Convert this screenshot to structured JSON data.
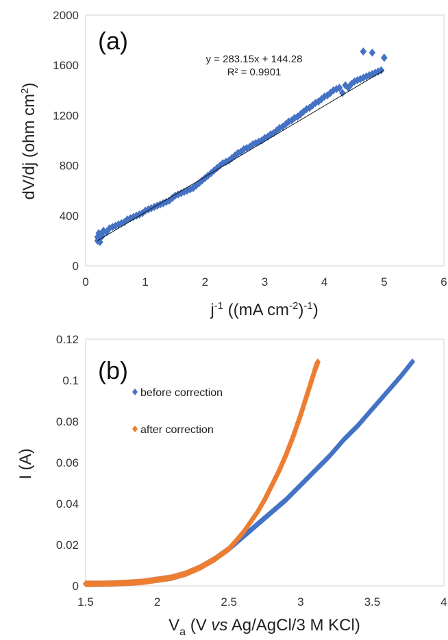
{
  "chart_data": [
    {
      "type": "scatter",
      "panel_label": "(a)",
      "xlabel": {
        "main": "j",
        "sup1": "-1",
        "mid": " ((mA cm",
        "sup2": "-2",
        "end": ")",
        "sup3": "-1",
        "tail": ")"
      },
      "ylabel": {
        "main": "dV/dj (ohm cm",
        "sup": "2",
        "end": ")"
      },
      "xlim": [
        0,
        6
      ],
      "ylim": [
        0,
        2000
      ],
      "xticks": [
        "0",
        "1",
        "2",
        "3",
        "4",
        "5",
        "6"
      ],
      "yticks": [
        "0",
        "400",
        "800",
        "1200",
        "1600",
        "2000"
      ],
      "grid": false,
      "equation": "y = 283.15x + 144.28",
      "r_squared": "R² = 0.9901",
      "trendline": {
        "slope": 283.15,
        "intercept": 144.28,
        "x_range": [
          0.2,
          5.0
        ]
      },
      "series": [
        {
          "color": "#4472C4",
          "marker": "diamond",
          "x": [
            0.2,
            0.22,
            0.25,
            0.28,
            0.3,
            0.35,
            0.4,
            0.45,
            0.5,
            0.55,
            0.6,
            0.65,
            0.7,
            0.75,
            0.8,
            0.85,
            0.9,
            0.95,
            1.0,
            1.05,
            1.1,
            1.15,
            1.2,
            1.25,
            1.3,
            1.35,
            1.4,
            1.45,
            1.5,
            1.55,
            1.6,
            1.65,
            1.7,
            1.75,
            1.8,
            1.85,
            1.9,
            1.95,
            2.0,
            2.05,
            2.1,
            2.15,
            2.2,
            2.25,
            2.3,
            2.35,
            2.4,
            2.45,
            2.5,
            2.55,
            2.6,
            2.65,
            2.7,
            2.75,
            2.8,
            2.85,
            2.9,
            2.95,
            3.0,
            3.05,
            3.1,
            3.15,
            3.2,
            3.25,
            3.3,
            3.35,
            3.4,
            3.45,
            3.5,
            3.55,
            3.6,
            3.65,
            3.7,
            3.75,
            3.8,
            3.85,
            3.9,
            3.95,
            4.0,
            4.05,
            4.1,
            4.15,
            4.2,
            4.25,
            4.3,
            4.35,
            4.4,
            4.45,
            4.5,
            4.55,
            4.6,
            4.65,
            4.7,
            4.75,
            4.8,
            4.85,
            4.9,
            4.95,
            5.0,
            4.65,
            4.8,
            5.0,
            0.2,
            0.22,
            0.24
          ],
          "y": [
            230,
            260,
            250,
            240,
            280,
            270,
            300,
            310,
            320,
            330,
            340,
            350,
            370,
            380,
            390,
            400,
            410,
            420,
            440,
            450,
            460,
            470,
            480,
            490,
            500,
            510,
            520,
            540,
            560,
            570,
            580,
            590,
            600,
            610,
            620,
            640,
            660,
            680,
            700,
            720,
            740,
            760,
            780,
            800,
            820,
            830,
            840,
            860,
            880,
            900,
            910,
            930,
            940,
            950,
            970,
            980,
            990,
            1000,
            1020,
            1030,
            1050,
            1060,
            1080,
            1100,
            1110,
            1130,
            1150,
            1160,
            1180,
            1190,
            1210,
            1230,
            1250,
            1260,
            1280,
            1300,
            1310,
            1330,
            1350,
            1360,
            1380,
            1400,
            1410,
            1420,
            1380,
            1440,
            1420,
            1450,
            1470,
            1480,
            1490,
            1500,
            1510,
            1520,
            1530,
            1540,
            1550,
            1560,
            1660,
            1710,
            1700,
            1660,
            200,
            210,
            190
          ]
        }
      ]
    },
    {
      "type": "scatter",
      "panel_label": "(b)",
      "xlabel": {
        "main": "V",
        "sub": "a",
        "pre": " (V ",
        "italic": "vs",
        "post": " Ag/AgCl/3 M KCl)"
      },
      "ylabel": "I (A)",
      "xlim": [
        1.5,
        4
      ],
      "ylim": [
        0,
        0.12
      ],
      "xticks": [
        "1.5",
        "2",
        "2.5",
        "3",
        "3.5",
        "4"
      ],
      "yticks": [
        "0",
        "0.02",
        "0.04",
        "0.06",
        "0.08",
        "0.1",
        "0.12"
      ],
      "grid": false,
      "legend_position": "top-left",
      "series": [
        {
          "name": "before correction",
          "color": "#4472C4",
          "marker": "diamond",
          "x": [
            1.5,
            1.6,
            1.7,
            1.8,
            1.9,
            2.0,
            2.1,
            2.2,
            2.3,
            2.4,
            2.5,
            2.6,
            2.7,
            2.8,
            2.9,
            3.0,
            3.1,
            3.2,
            3.3,
            3.4,
            3.5,
            3.6,
            3.7,
            3.78
          ],
          "y": [
            0.001,
            0.001,
            0.0012,
            0.0015,
            0.002,
            0.003,
            0.004,
            0.006,
            0.009,
            0.013,
            0.018,
            0.024,
            0.03,
            0.036,
            0.042,
            0.049,
            0.056,
            0.063,
            0.071,
            0.078,
            0.086,
            0.094,
            0.102,
            0.109
          ]
        },
        {
          "name": "after correction",
          "color": "#ED7D31",
          "marker": "diamond",
          "x": [
            1.5,
            1.6,
            1.7,
            1.8,
            1.9,
            2.0,
            2.1,
            2.2,
            2.3,
            2.4,
            2.5,
            2.55,
            2.6,
            2.65,
            2.7,
            2.75,
            2.8,
            2.85,
            2.9,
            2.95,
            3.0,
            3.05,
            3.1,
            3.12
          ],
          "y": [
            0.001,
            0.001,
            0.0012,
            0.0015,
            0.002,
            0.003,
            0.004,
            0.006,
            0.009,
            0.013,
            0.018,
            0.022,
            0.026,
            0.031,
            0.036,
            0.042,
            0.049,
            0.056,
            0.064,
            0.073,
            0.083,
            0.094,
            0.105,
            0.109
          ]
        }
      ]
    }
  ]
}
